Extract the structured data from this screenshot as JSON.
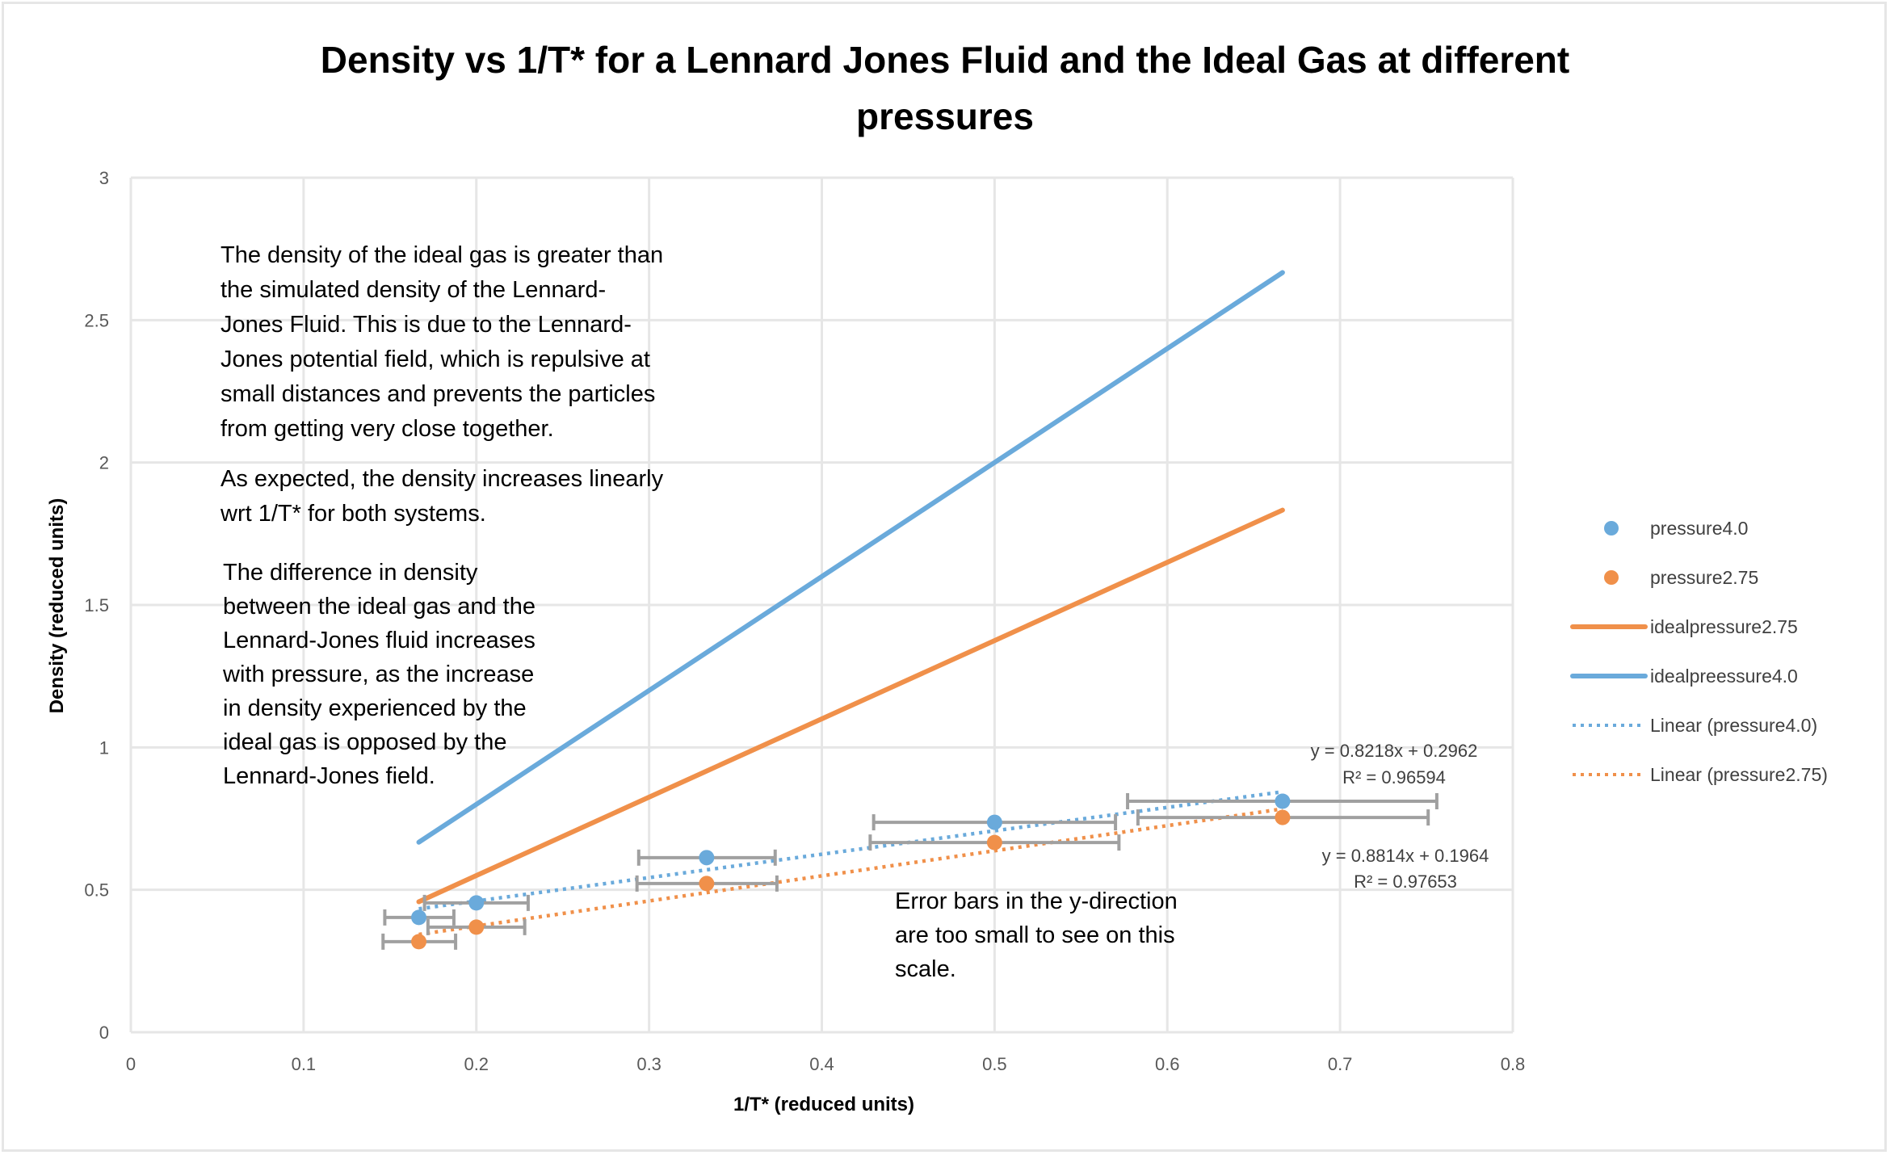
{
  "chart_data": {
    "type": "scatter",
    "title": "Density vs 1/T* for a Lennard Jones Fluid and the Ideal Gas at different pressures",
    "title_lines": [
      "Density vs 1/T* for a Lennard Jones Fluid and the Ideal Gas at different",
      "pressures"
    ],
    "xlabel": "1/T* (reduced units)",
    "ylabel": "Density (reduced units)",
    "xlim": [
      0,
      0.8
    ],
    "ylim": [
      0,
      3
    ],
    "x_ticks": [
      0,
      0.1,
      0.2,
      0.3,
      0.4,
      0.5,
      0.6,
      0.7,
      0.8
    ],
    "x_tick_labels": [
      "0",
      "0.1",
      "0.2",
      "0.3",
      "0.4",
      "0.5",
      "0.6",
      "0.7",
      "0.8"
    ],
    "y_ticks": [
      0,
      0.5,
      1,
      1.5,
      2,
      2.5,
      3
    ],
    "y_tick_labels": [
      "0",
      "0.5",
      "1",
      "1.5",
      "2",
      "2.5",
      "3"
    ],
    "grid": true,
    "legend_position": "right",
    "series": [
      {
        "name": "pressure4.0",
        "kind": "markers",
        "color": "#6aaadb",
        "x": [
          0.1667,
          0.2,
          0.3333,
          0.5,
          0.6667
        ],
        "y": [
          0.403,
          0.454,
          0.613,
          0.737,
          0.811
        ],
        "x_error_low": [
          0.147,
          0.17,
          0.294,
          0.43,
          0.577
        ],
        "x_error_high": [
          0.187,
          0.23,
          0.373,
          0.57,
          0.756
        ]
      },
      {
        "name": "pressure2.75",
        "kind": "markers",
        "color": "#f0904a",
        "x": [
          0.1667,
          0.2,
          0.3333,
          0.5,
          0.6667
        ],
        "y": [
          0.318,
          0.369,
          0.522,
          0.666,
          0.754
        ],
        "x_error_low": [
          0.146,
          0.172,
          0.293,
          0.428,
          0.583
        ],
        "x_error_high": [
          0.188,
          0.228,
          0.374,
          0.572,
          0.751
        ]
      },
      {
        "name": "idealpressure2.75",
        "kind": "line",
        "color": "#f0904a",
        "x": [
          0.1667,
          0.2,
          0.3333,
          0.5,
          0.6667
        ],
        "y": [
          0.458,
          0.55,
          0.917,
          1.375,
          1.833
        ]
      },
      {
        "name": "idealpreessure4.0",
        "kind": "line",
        "color": "#6aaadb",
        "x": [
          0.1667,
          0.2,
          0.3333,
          0.5,
          0.6667
        ],
        "y": [
          0.667,
          0.8,
          1.333,
          2.0,
          2.667
        ]
      },
      {
        "name": "Linear (pressure4.0)",
        "kind": "trendline",
        "color": "#6aaadb",
        "slope": 0.8218,
        "intercept": 0.2962,
        "x_range": [
          0.1667,
          0.6667
        ],
        "equation": "y = 0.8218x + 0.2962",
        "r_squared": "R² = 0.96594"
      },
      {
        "name": "Linear (pressure2.75)",
        "kind": "trendline",
        "color": "#f0904a",
        "slope": 0.8814,
        "intercept": 0.1964,
        "x_range": [
          0.1667,
          0.6667
        ],
        "equation": "y = 0.8814x + 0.1964",
        "r_squared": "R² = 0.97653"
      }
    ],
    "annotations": [
      {
        "name": "ideal-vs-lj-note",
        "lines": [
          "The density of the ideal gas is greater than",
          "the simulated density of the Lennard-",
          "Jones Fluid. This is due to the Lennard-",
          "Jones potential field, which is repulsive at",
          "small distances and prevents the particles",
          "from getting very close together."
        ]
      },
      {
        "name": "linear-note",
        "lines": [
          "As expected, the density increases linearly",
          "wrt 1/T* for both systems."
        ]
      },
      {
        "name": "difference-note",
        "lines": [
          "The difference in density",
          "between the ideal gas and the",
          "Lennard-Jones fluid increases",
          "with pressure, as the increase",
          "in density experienced by the",
          "ideal gas is opposed by the",
          "Lennard-Jones field."
        ]
      },
      {
        "name": "error-bar-note",
        "lines": [
          "Error bars in the y-direction",
          "are too small to see on this",
          "scale."
        ]
      }
    ],
    "legend": [
      {
        "label": "pressure4.0",
        "symbol": "dot",
        "color": "#6aaadb"
      },
      {
        "label": "pressure2.75",
        "symbol": "dot",
        "color": "#f0904a"
      },
      {
        "label": "idealpressure2.75",
        "symbol": "line",
        "color": "#f0904a"
      },
      {
        "label": "idealpreessure4.0",
        "symbol": "line",
        "color": "#6aaadb"
      },
      {
        "label": "Linear (pressure4.0)",
        "symbol": "dotted",
        "color": "#6aaadb"
      },
      {
        "label": "Linear (pressure2.75)",
        "symbol": "dotted",
        "color": "#f0904a"
      }
    ],
    "colors": {
      "grid": "#e6e6e6",
      "error_bar": "#a0a0a0",
      "blue": "#6aaadb",
      "orange": "#f0904a"
    }
  }
}
